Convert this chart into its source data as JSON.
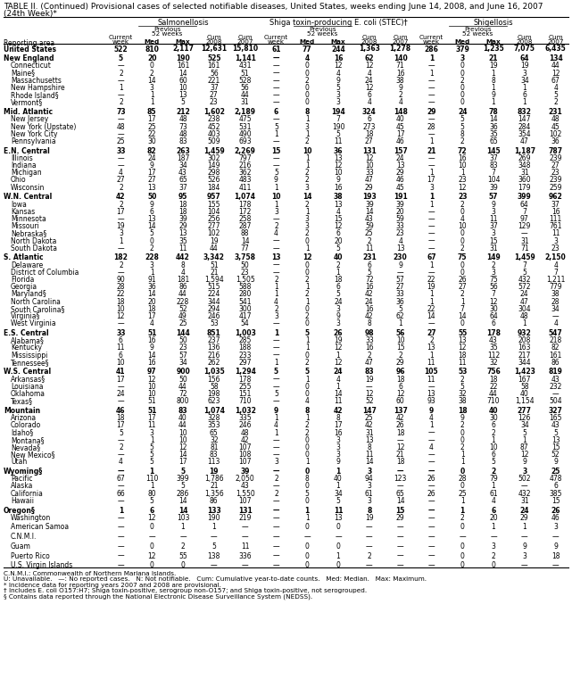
{
  "title_line1": "TABLE II. (Continued) Provisional cases of selected notifiable diseases, United States, weeks ending June 14, 2008, and June 16, 2007",
  "title_line2": "(24th Week)*",
  "col_groups": [
    "Salmonellosis",
    "Shiga toxin-producing E. coli (STEC)†",
    "Shigellosis"
  ],
  "rows": [
    [
      "United States",
      "522",
      "810",
      "2,117",
      "12,631",
      "15,810",
      "61",
      "77",
      "244",
      "1,363",
      "1,278",
      "286",
      "379",
      "1,235",
      "7,075",
      "6,435"
    ],
    [
      "New England",
      "5",
      "20",
      "190",
      "525",
      "1,141",
      "—",
      "4",
      "16",
      "62",
      "140",
      "1",
      "3",
      "21",
      "64",
      "134"
    ],
    [
      "Connecticut",
      "—",
      "0",
      "161",
      "161",
      "431",
      "—",
      "0",
      "12",
      "12",
      "71",
      "—",
      "0",
      "19",
      "19",
      "44"
    ],
    [
      "Maine§",
      "2",
      "2",
      "14",
      "56",
      "51",
      "—",
      "0",
      "4",
      "4",
      "16",
      "1",
      "0",
      "1",
      "3",
      "12"
    ],
    [
      "Massachusetts",
      "—",
      "14",
      "60",
      "221",
      "528",
      "—",
      "2",
      "9",
      "24",
      "38",
      "—",
      "2",
      "8",
      "34",
      "67"
    ],
    [
      "New Hampshire",
      "1",
      "3",
      "10",
      "37",
      "56",
      "—",
      "0",
      "5",
      "12",
      "9",
      "—",
      "0",
      "1",
      "1",
      "4"
    ],
    [
      "Rhode Island§",
      "—",
      "1",
      "13",
      "27",
      "44",
      "—",
      "0",
      "3",
      "6",
      "2",
      "—",
      "0",
      "9",
      "6",
      "5"
    ],
    [
      "Vermont§",
      "2",
      "1",
      "5",
      "23",
      "31",
      "—",
      "0",
      "3",
      "4",
      "4",
      "—",
      "0",
      "1",
      "1",
      "2"
    ],
    [
      "Mid. Atlantic",
      "73",
      "85",
      "212",
      "1,602",
      "2,189",
      "6",
      "8",
      "194",
      "324",
      "148",
      "29",
      "24",
      "78",
      "832",
      "231"
    ],
    [
      "New Jersey",
      "—",
      "17",
      "48",
      "238",
      "475",
      "—",
      "1",
      "7",
      "6",
      "40",
      "—",
      "5",
      "14",
      "147",
      "48"
    ],
    [
      "New York (Upstate)",
      "48",
      "25",
      "73",
      "452",
      "531",
      "5",
      "3",
      "190",
      "273",
      "45",
      "28",
      "5",
      "36",
      "284",
      "45"
    ],
    [
      "New York City",
      "—",
      "22",
      "48",
      "403",
      "490",
      "1",
      "1",
      "5",
      "18",
      "17",
      "—",
      "8",
      "35",
      "354",
      "102"
    ],
    [
      "Pennsylvania",
      "25",
      "30",
      "83",
      "509",
      "693",
      "—",
      "2",
      "11",
      "27",
      "46",
      "1",
      "2",
      "65",
      "47",
      "36"
    ],
    [
      "E.N. Central",
      "33",
      "82",
      "263",
      "1,459",
      "2,269",
      "15",
      "10",
      "36",
      "131",
      "157",
      "21",
      "72",
      "145",
      "1,187",
      "787"
    ],
    [
      "Illinois",
      "—",
      "24",
      "187",
      "302",
      "797",
      "—",
      "1",
      "13",
      "12",
      "24",
      "—",
      "16",
      "37",
      "269",
      "239"
    ],
    [
      "Indiana",
      "—",
      "9",
      "34",
      "149",
      "216",
      "—",
      "1",
      "12",
      "10",
      "13",
      "—",
      "10",
      "83",
      "348",
      "27"
    ],
    [
      "Michigan",
      "4",
      "17",
      "43",
      "298",
      "362",
      "5",
      "2",
      "10",
      "33",
      "29",
      "1",
      "1",
      "7",
      "31",
      "23"
    ],
    [
      "Ohio",
      "27",
      "27",
      "65",
      "526",
      "483",
      "9",
      "2",
      "9",
      "47",
      "46",
      "17",
      "23",
      "104",
      "360",
      "239"
    ],
    [
      "Wisconsin",
      "2",
      "13",
      "37",
      "184",
      "411",
      "1",
      "3",
      "16",
      "29",
      "45",
      "3",
      "12",
      "39",
      "179",
      "259"
    ],
    [
      "W.N. Central",
      "42",
      "50",
      "95",
      "957",
      "1,074",
      "10",
      "14",
      "38",
      "193",
      "191",
      "1",
      "23",
      "57",
      "399",
      "962"
    ],
    [
      "Iowa",
      "2",
      "9",
      "18",
      "155",
      "178",
      "1",
      "2",
      "13",
      "39",
      "39",
      "1",
      "2",
      "9",
      "64",
      "37"
    ],
    [
      "Kansas",
      "17",
      "6",
      "18",
      "104",
      "172",
      "3",
      "1",
      "4",
      "14",
      "20",
      "—",
      "0",
      "3",
      "7",
      "16"
    ],
    [
      "Minnesota",
      "—",
      "13",
      "39",
      "256",
      "258",
      "—",
      "3",
      "15",
      "43",
      "59",
      "—",
      "4",
      "11",
      "97",
      "111"
    ],
    [
      "Missouri",
      "19",
      "14",
      "29",
      "277",
      "287",
      "2",
      "3",
      "12",
      "59",
      "33",
      "—",
      "10",
      "37",
      "129",
      "761"
    ],
    [
      "Nebraska§",
      "3",
      "5",
      "13",
      "102",
      "88",
      "4",
      "2",
      "6",
      "25",
      "23",
      "—",
      "0",
      "3",
      "—",
      "11"
    ],
    [
      "North Dakota",
      "1",
      "0",
      "35",
      "19",
      "14",
      "—",
      "0",
      "20",
      "2",
      "4",
      "—",
      "0",
      "15",
      "31",
      "3"
    ],
    [
      "South Dakota",
      "—",
      "2",
      "11",
      "44",
      "77",
      "—",
      "1",
      "5",
      "11",
      "13",
      "—",
      "2",
      "31",
      "71",
      "23"
    ],
    [
      "S. Atlantic",
      "182",
      "228",
      "442",
      "3,342",
      "3,758",
      "13",
      "12",
      "40",
      "231",
      "230",
      "67",
      "75",
      "149",
      "1,459",
      "2,150"
    ],
    [
      "Delaware",
      "2",
      "3",
      "8",
      "51",
      "50",
      "—",
      "0",
      "2",
      "6",
      "9",
      "1",
      "0",
      "2",
      "7",
      "4"
    ],
    [
      "District of Columbia",
      "—",
      "1",
      "4",
      "21",
      "23",
      "—",
      "0",
      "1",
      "5",
      "—",
      "—",
      "0",
      "3",
      "5",
      "7"
    ],
    [
      "Florida",
      "90",
      "91",
      "181",
      "1,594",
      "1,505",
      "2",
      "2",
      "18",
      "72",
      "57",
      "22",
      "26",
      "75",
      "432",
      "1,211"
    ],
    [
      "Georgia",
      "28",
      "36",
      "86",
      "515",
      "588",
      "1",
      "1",
      "6",
      "16",
      "27",
      "19",
      "27",
      "56",
      "572",
      "779"
    ],
    [
      "Maryland§",
      "22",
      "14",
      "44",
      "224",
      "280",
      "1",
      "2",
      "5",
      "42",
      "33",
      "1",
      "2",
      "7",
      "24",
      "38"
    ],
    [
      "North Carolina",
      "18",
      "20",
      "228",
      "344",
      "541",
      "4",
      "1",
      "24",
      "24",
      "36",
      "1",
      "1",
      "12",
      "47",
      "28"
    ],
    [
      "South Carolina§",
      "10",
      "18",
      "52",
      "294",
      "300",
      "2",
      "0",
      "3",
      "16",
      "5",
      "22",
      "7",
      "30",
      "304",
      "34"
    ],
    [
      "Virginia§",
      "12",
      "17",
      "49",
      "246",
      "417",
      "3",
      "2",
      "9",
      "42",
      "62",
      "14",
      "14",
      "64",
      "48",
      "—"
    ],
    [
      "West Virginia",
      "—",
      "4",
      "25",
      "53",
      "54",
      "—",
      "0",
      "3",
      "8",
      "1",
      "—",
      "0",
      "6",
      "1",
      "4"
    ],
    [
      "E.S. Central",
      "33",
      "51",
      "144",
      "851",
      "1,003",
      "1",
      "5",
      "26",
      "98",
      "56",
      "27",
      "55",
      "178",
      "932",
      "547"
    ],
    [
      "Alabama§",
      "6",
      "16",
      "50",
      "237",
      "285",
      "—",
      "1",
      "19",
      "33",
      "10",
      "2",
      "13",
      "43",
      "208",
      "218"
    ],
    [
      "Kentucky",
      "11",
      "9",
      "23",
      "136",
      "188",
      "—",
      "1",
      "12",
      "16",
      "15",
      "13",
      "12",
      "35",
      "163",
      "82"
    ],
    [
      "Mississippi",
      "6",
      "14",
      "57",
      "216",
      "233",
      "—",
      "0",
      "1",
      "2",
      "2",
      "1",
      "18",
      "112",
      "217",
      "161"
    ],
    [
      "Tennessee§",
      "10",
      "16",
      "34",
      "262",
      "297",
      "1",
      "2",
      "12",
      "47",
      "29",
      "11",
      "11",
      "32",
      "344",
      "86"
    ],
    [
      "W.S. Central",
      "41",
      "97",
      "900",
      "1,035",
      "1,294",
      "5",
      "5",
      "24",
      "83",
      "96",
      "105",
      "53",
      "756",
      "1,423",
      "819"
    ],
    [
      "Arkansas§",
      "17",
      "12",
      "50",
      "156",
      "178",
      "—",
      "1",
      "4",
      "19",
      "18",
      "11",
      "2",
      "18",
      "167",
      "43"
    ],
    [
      "Louisiana",
      "—",
      "10",
      "44",
      "58",
      "255",
      "—",
      "0",
      "1",
      "—",
      "6",
      "—",
      "5",
      "22",
      "58",
      "232"
    ],
    [
      "Oklahoma",
      "24",
      "10",
      "72",
      "198",
      "151",
      "5",
      "0",
      "14",
      "12",
      "12",
      "13",
      "32",
      "44",
      "40",
      "—"
    ],
    [
      "Texas§",
      "—",
      "51",
      "800",
      "623",
      "710",
      "—",
      "4",
      "11",
      "52",
      "60",
      "93",
      "38",
      "710",
      "1,154",
      "504"
    ],
    [
      "Mountain",
      "46",
      "51",
      "83",
      "1,074",
      "1,032",
      "9",
      "8",
      "42",
      "147",
      "137",
      "9",
      "18",
      "40",
      "277",
      "327"
    ],
    [
      "Arizona",
      "18",
      "17",
      "40",
      "328",
      "335",
      "1",
      "1",
      "8",
      "25",
      "42",
      "4",
      "9",
      "30",
      "126",
      "165"
    ],
    [
      "Colorado",
      "17",
      "11",
      "44",
      "353",
      "246",
      "4",
      "2",
      "17",
      "42",
      "26",
      "1",
      "2",
      "6",
      "34",
      "43"
    ],
    [
      "Idaho§",
      "5",
      "3",
      "10",
      "65",
      "48",
      "1",
      "2",
      "16",
      "31",
      "18",
      "—",
      "0",
      "2",
      "5",
      "5"
    ],
    [
      "Montana§",
      "—",
      "1",
      "10",
      "32",
      "42",
      "—",
      "0",
      "3",
      "13",
      "—",
      "—",
      "0",
      "1",
      "1",
      "13"
    ],
    [
      "Nevada§",
      "2",
      "5",
      "12",
      "81",
      "107",
      "—",
      "0",
      "3",
      "8",
      "12",
      "4",
      "2",
      "10",
      "87",
      "15"
    ],
    [
      "New Mexico§",
      "—",
      "5",
      "14",
      "83",
      "108",
      "—",
      "0",
      "3",
      "11",
      "21",
      "—",
      "1",
      "6",
      "12",
      "52"
    ],
    [
      "Utah",
      "4",
      "5",
      "17",
      "113",
      "107",
      "3",
      "1",
      "9",
      "14",
      "18",
      "—",
      "1",
      "5",
      "9",
      "9"
    ],
    [
      "Wyoming§",
      "—",
      "1",
      "5",
      "19",
      "39",
      "—",
      "0",
      "1",
      "3",
      "—",
      "—",
      "0",
      "2",
      "3",
      "25"
    ],
    [
      "Pacific",
      "67",
      "110",
      "399",
      "1,786",
      "2,050",
      "2",
      "8",
      "40",
      "94",
      "123",
      "26",
      "28",
      "79",
      "502",
      "478"
    ],
    [
      "Alaska",
      "—",
      "1",
      "5",
      "21",
      "43",
      "—",
      "0",
      "1",
      "3",
      "—",
      "—",
      "0",
      "1",
      "—",
      "6"
    ],
    [
      "California",
      "66",
      "80",
      "286",
      "1,356",
      "1,550",
      "2",
      "5",
      "34",
      "61",
      "65",
      "26",
      "25",
      "61",
      "432",
      "385"
    ],
    [
      "Hawaii",
      "—",
      "5",
      "14",
      "86",
      "107",
      "—",
      "0",
      "5",
      "3",
      "14",
      "—",
      "1",
      "4",
      "31",
      "15"
    ],
    [
      "Oregon§",
      "1",
      "6",
      "14",
      "133",
      "131",
      "—",
      "1",
      "11",
      "8",
      "15",
      "—",
      "1",
      "6",
      "24",
      "26"
    ],
    [
      "Washington",
      "—",
      "12",
      "103",
      "190",
      "219",
      "—",
      "1",
      "13",
      "19",
      "29",
      "—",
      "2",
      "20",
      "29",
      "46"
    ],
    [
      "American Samoa",
      "—",
      "0",
      "1",
      "1",
      "—",
      "—",
      "0",
      "0",
      "—",
      "—",
      "—",
      "0",
      "1",
      "1",
      "3"
    ],
    [
      "C.N.M.I.",
      "—",
      "—",
      "—",
      "—",
      "—",
      "—",
      "—",
      "—",
      "—",
      "—",
      "—",
      "—",
      "—",
      "—",
      "—"
    ],
    [
      "Guam",
      "—",
      "0",
      "2",
      "5",
      "11",
      "—",
      "0",
      "0",
      "—",
      "—",
      "—",
      "0",
      "3",
      "9",
      "9"
    ],
    [
      "Puerto Rico",
      "—",
      "12",
      "55",
      "138",
      "336",
      "—",
      "0",
      "1",
      "2",
      "—",
      "—",
      "0",
      "2",
      "3",
      "18"
    ],
    [
      "U.S. Virgin Islands",
      "—",
      "0",
      "0",
      "—",
      "—",
      "—",
      "0",
      "0",
      "—",
      "—",
      "—",
      "0",
      "0",
      "—",
      "—"
    ]
  ],
  "bold_rows": [
    0,
    1,
    8,
    13,
    19,
    27,
    37,
    42,
    47,
    55,
    60
  ],
  "extra_gap_before": [
    1,
    8,
    13,
    19,
    27,
    37,
    42,
    47,
    55,
    60,
    62,
    63,
    64,
    65,
    66
  ],
  "footnotes": [
    "C.N.M.I.: Commonwealth of Northern Mariana Islands.",
    "U: Unavailable.   —: No reported cases.   N: Not notifiable.   Cum: Cumulative year-to-date counts.   Med: Median.   Max: Maximum.",
    "* Incidence data for reporting years 2007 and 2008 are provisional.",
    "† Includes E. coli O157:H7; Shiga toxin-positive, serogroup non-O157; and Shiga toxin-positive, not serogrouped.",
    "§ Contains data reported through the National Electronic Disease Surveillance System (NEDSS)."
  ]
}
